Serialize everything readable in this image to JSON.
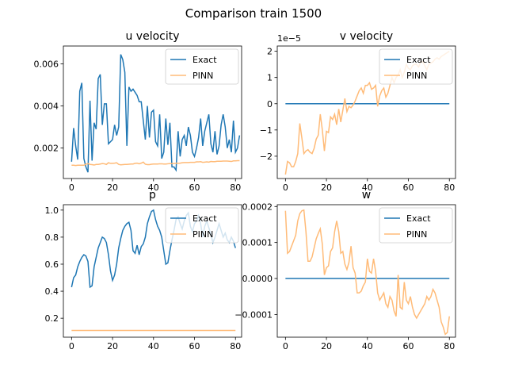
{
  "figure_title": "Comparison train 1500",
  "colors": {
    "exact": "#1f77b4",
    "pinn": "#ffbb78"
  },
  "chart_data": [
    {
      "type": "line",
      "title": "u velocity",
      "xlabel": "",
      "ylabel": "",
      "xlim": [
        -4,
        83
      ],
      "ylim": [
        0.00055,
        0.00685
      ],
      "xticks": [
        0,
        20,
        40,
        60,
        80
      ],
      "yticks": [
        0.002,
        0.004,
        0.006
      ],
      "ytick_labels": [
        "0.002",
        "0.004",
        "0.006"
      ],
      "offset_label": "",
      "grid": false,
      "legend_position": "top-right",
      "series": [
        {
          "name": "Exact",
          "values": [
            0.00135,
            0.00295,
            0.0021,
            0.00145,
            0.0047,
            0.0051,
            0.0015,
            0.0011,
            0.00085,
            0.00425,
            0.0014,
            0.0032,
            0.0029,
            0.0053,
            0.0055,
            0.0031,
            0.0041,
            0.0041,
            0.0022,
            0.0023,
            0.0024,
            0.0031,
            0.0026,
            0.003,
            0.00645,
            0.0062,
            0.0056,
            0.0021,
            0.0049,
            0.0047,
            0.0048,
            0.00465,
            0.0045,
            0.0042,
            0.0042,
            0.0033,
            0.0024,
            0.004,
            0.0025,
            0.0037,
            0.0038,
            0.0023,
            0.0021,
            0.0036,
            0.0015,
            0.0018,
            0.0034,
            0.00215,
            0.0032,
            0.0011,
            0.0011,
            0.00095,
            0.0028,
            0.0016,
            0.0024,
            0.0026,
            0.0021,
            0.003,
            0.0026,
            0.0018,
            0.0016,
            0.002,
            0.0025,
            0.0034,
            0.0021,
            0.0028,
            0.0032,
            0.0036,
            0.0022,
            0.0018,
            0.0028,
            0.0017,
            0.0021,
            0.0031,
            0.0036,
            0.003,
            0.002,
            0.0024,
            0.0018,
            0.0033,
            0.0018,
            0.002,
            0.0026
          ]
        },
        {
          "name": "PINN",
          "values": [
            0.00118,
            0.00118,
            0.00117,
            0.00118,
            0.00118,
            0.00118,
            0.00118,
            0.00123,
            0.00126,
            0.00122,
            0.00121,
            0.00119,
            0.00122,
            0.00122,
            0.00124,
            0.00126,
            0.00125,
            0.00122,
            0.0013,
            0.00127,
            0.00127,
            0.00128,
            0.0013,
            0.00122,
            0.0012,
            0.00121,
            0.00122,
            0.00122,
            0.00123,
            0.00124,
            0.00124,
            0.00127,
            0.00128,
            0.00125,
            0.00128,
            0.00133,
            0.00123,
            0.00121,
            0.00121,
            0.00123,
            0.00124,
            0.00124,
            0.00124,
            0.00125,
            0.00125,
            0.00124,
            0.00124,
            0.00125,
            0.00126,
            0.00126,
            0.00126,
            0.00128,
            0.00127,
            0.00128,
            0.0013,
            0.00131,
            0.00131,
            0.00131,
            0.00132,
            0.00132,
            0.00132,
            0.00134,
            0.00134,
            0.00135,
            0.00132,
            0.00133,
            0.00134,
            0.00133,
            0.00136,
            0.00135,
            0.00135,
            0.00137,
            0.00137,
            0.00137,
            0.00138,
            0.00138,
            0.00138,
            0.00137,
            0.00136,
            0.00139,
            0.00139,
            0.0014,
            0.0014
          ]
        }
      ]
    },
    {
      "type": "line",
      "title": "v velocity",
      "xlabel": "",
      "ylabel": "",
      "xlim": [
        -4,
        83
      ],
      "ylim": [
        -2.85,
        2.2
      ],
      "xticks": [
        0,
        20,
        40,
        60,
        80
      ],
      "yticks": [
        -2,
        -1,
        0,
        1,
        2
      ],
      "ytick_labels": [
        "−2",
        "−1",
        "0",
        "1",
        "2"
      ],
      "offset_label": "1e−5",
      "grid": false,
      "legend_position": "top-right",
      "series": [
        {
          "name": "Exact",
          "values": [
            0,
            0,
            0,
            0,
            0,
            0,
            0,
            0,
            0,
            0,
            0,
            0,
            0,
            0,
            0,
            0,
            0,
            0,
            0,
            0,
            0,
            0,
            0,
            0,
            0,
            0,
            0,
            0,
            0,
            0,
            0,
            0,
            0,
            0,
            0,
            0,
            0,
            0,
            0,
            0,
            0,
            0,
            0,
            0,
            0,
            0,
            0,
            0,
            0,
            0,
            0,
            0,
            0,
            0,
            0,
            0,
            0,
            0,
            0,
            0,
            0,
            0,
            0,
            0,
            0,
            0,
            0,
            0,
            0,
            0,
            0,
            0,
            0,
            0,
            0,
            0,
            0,
            0,
            0,
            0,
            0
          ]
        },
        {
          "name": "PINN",
          "values": [
            -2.7,
            -2.2,
            -2.25,
            -2.4,
            -2.4,
            -2.2,
            -1.9,
            -0.75,
            -1.3,
            -1.9,
            -1.8,
            -1.75,
            -1.85,
            -1.9,
            -1.7,
            -1.35,
            -1.2,
            -0.4,
            -1.0,
            -1.8,
            -1.05,
            -1.1,
            -0.5,
            -0.6,
            -0.4,
            -0.8,
            -0.2,
            -0.7,
            -0.25,
            0.2,
            -0.3,
            -0.1,
            -0.15,
            -0.05,
            0.1,
            0.3,
            0.5,
            0.6,
            0.4,
            0.7,
            0.7,
            0.8,
            0.55,
            0.6,
            0.7,
            -0.1,
            0.3,
            0.5,
            0.6,
            0.25,
            0.4,
            0.7,
            1.0,
            0.8,
            1.0,
            1.1,
            1.3,
            1.0,
            1.2,
            1.5,
            1.35,
            1.3,
            1.45,
            1.5,
            1.5,
            1.4,
            1.6,
            1.6,
            1.45,
            1.3,
            1.5,
            1.55,
            1.6,
            1.7,
            1.75,
            1.7,
            1.8,
            1.85,
            1.9,
            1.95,
            2.0
          ]
        }
      ]
    },
    {
      "type": "line",
      "title": "p",
      "xlabel": "",
      "ylabel": "",
      "xlim": [
        -4,
        83
      ],
      "ylim": [
        0.06,
        1.04
      ],
      "xticks": [
        0,
        20,
        40,
        60,
        80
      ],
      "yticks": [
        0.2,
        0.4,
        0.6,
        0.8,
        1.0
      ],
      "ytick_labels": [
        "0.2",
        "0.4",
        "0.6",
        "0.8",
        "1.0"
      ],
      "offset_label": "",
      "grid": false,
      "legend_position": "top-right",
      "series": [
        {
          "name": "Exact",
          "values": [
            0.43,
            0.5,
            0.52,
            0.58,
            0.62,
            0.65,
            0.67,
            0.66,
            0.62,
            0.43,
            0.44,
            0.58,
            0.65,
            0.72,
            0.76,
            0.8,
            0.79,
            0.76,
            0.67,
            0.55,
            0.48,
            0.52,
            0.6,
            0.72,
            0.79,
            0.85,
            0.88,
            0.9,
            0.91,
            0.85,
            0.7,
            0.68,
            0.74,
            0.67,
            0.73,
            0.75,
            0.8,
            0.9,
            0.95,
            0.99,
            1.0,
            0.93,
            0.88,
            0.85,
            0.8,
            0.7,
            0.6,
            0.61,
            0.7,
            0.78,
            0.85,
            0.93,
            0.95,
            0.9,
            0.86,
            0.92,
            0.96,
            0.98,
            0.88,
            0.84,
            0.9,
            0.92,
            0.96,
            0.9,
            0.8,
            0.88,
            0.92,
            0.87,
            0.82,
            0.76,
            0.8,
            0.85,
            0.9,
            0.85,
            0.8,
            0.83,
            0.78,
            0.76,
            0.8,
            0.77,
            0.72
          ]
        },
        {
          "name": "PINN",
          "values": [
            0.11,
            0.11,
            0.11,
            0.11,
            0.11,
            0.11,
            0.11,
            0.11,
            0.11,
            0.11,
            0.11,
            0.11,
            0.11,
            0.11,
            0.11,
            0.11,
            0.11,
            0.11,
            0.11,
            0.11,
            0.11,
            0.11,
            0.11,
            0.11,
            0.11,
            0.11,
            0.11,
            0.11,
            0.11,
            0.11,
            0.11,
            0.11,
            0.11,
            0.11,
            0.11,
            0.11,
            0.11,
            0.11,
            0.11,
            0.11,
            0.11,
            0.11,
            0.11,
            0.11,
            0.11,
            0.11,
            0.11,
            0.11,
            0.11,
            0.11,
            0.11,
            0.11,
            0.11,
            0.11,
            0.11,
            0.11,
            0.11,
            0.11,
            0.11,
            0.11,
            0.11,
            0.11,
            0.11,
            0.11,
            0.11,
            0.11,
            0.11,
            0.11,
            0.11,
            0.11,
            0.11,
            0.11,
            0.11,
            0.11,
            0.11,
            0.11,
            0.11,
            0.11,
            0.11,
            0.11,
            0.11
          ]
        }
      ]
    },
    {
      "type": "line",
      "title": "w",
      "xlabel": "",
      "ylabel": "",
      "xlim": [
        -4,
        83
      ],
      "ylim": [
        -0.000163,
        0.000205
      ],
      "xticks": [
        0,
        20,
        40,
        60,
        80
      ],
      "yticks": [
        -0.0001,
        0.0,
        0.0001,
        0.0002
      ],
      "ytick_labels": [
        "−0.0001",
        "0.0000",
        "0.0001",
        "0.0002"
      ],
      "offset_label": "",
      "grid": false,
      "legend_position": "top-right",
      "series": [
        {
          "name": "Exact",
          "values": [
            0,
            0,
            0,
            0,
            0,
            0,
            0,
            0,
            0,
            0,
            0,
            0,
            0,
            0,
            0,
            0,
            0,
            0,
            0,
            0,
            0,
            0,
            0,
            0,
            0,
            0,
            0,
            0,
            0,
            0,
            0,
            0,
            0,
            0,
            0,
            0,
            0,
            0,
            0,
            0,
            0,
            0,
            0,
            0,
            0,
            0,
            0,
            0,
            0,
            0,
            0,
            0,
            0,
            0,
            0,
            0,
            0,
            0,
            0,
            0,
            0,
            0,
            0,
            0,
            0,
            0,
            0,
            0,
            0,
            0,
            0,
            0,
            0,
            0,
            0,
            0,
            0,
            0,
            0,
            0,
            0
          ]
        },
        {
          "name": "PINN",
          "values": [
            0.000188,
            7e-05,
            7.5e-05,
            9e-05,
            0.000105,
            0.00012,
            0.00016,
            0.00018,
            0.000188,
            0.00019,
            0.00013,
            4.8e-05,
            4.8e-05,
            6e-05,
            8.5e-05,
            0.00011,
            0.000125,
            0.000138,
            9.5e-05,
            1e-05,
            3e-05,
            3.5e-05,
            7.5e-05,
            8.5e-05,
            0.00013,
            0.00016,
            0.00013,
            7e-05,
            7.5e-05,
            4e-05,
            2.5e-05,
            4.5e-05,
            9e-05,
            3e-05,
            1.5e-05,
            -4e-05,
            -4e-05,
            -3.5e-05,
            -2e-05,
            -1e-05,
            5.5e-05,
            2e-05,
            1.5e-05,
            5.5e-05,
            2e-05,
            -4e-05,
            -6e-05,
            -5e-05,
            -4e-05,
            -7e-05,
            -8e-05,
            -5e-05,
            -6e-05,
            -9e-05,
            -0.000105,
            1e-05,
            -8e-05,
            -8.5e-05,
            -1e-05,
            -6e-05,
            -7e-05,
            -5e-05,
            -8e-05,
            -0.0001,
            -0.00011,
            -0.0001,
            -9e-05,
            -8e-05,
            -7e-05,
            -5e-05,
            -6e-05,
            -5e-05,
            -3e-05,
            -4e-05,
            -6e-05,
            -8e-05,
            -0.00012,
            -0.000135,
            -0.000155,
            -0.00015,
            -0.000105
          ]
        }
      ]
    }
  ]
}
